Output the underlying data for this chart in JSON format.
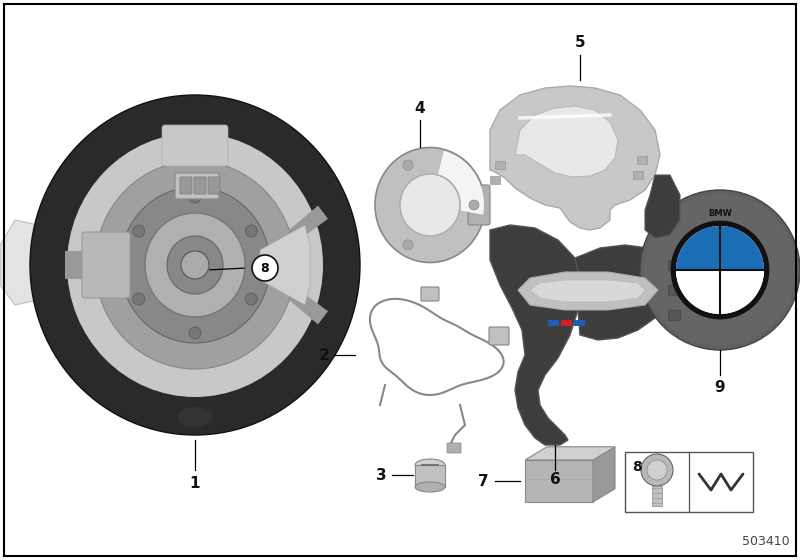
{
  "bg_color": "#ffffff",
  "border_color": "#000000",
  "part_number": "503410",
  "wheel_color": "#2a2a2a",
  "hub_color": "#909090",
  "silver": "#c0c0c0",
  "dark_part": "#3d3d3d",
  "light_gray": "#b8b8b8",
  "med_gray": "#888888",
  "bmw_blue": "#1b6eb5",
  "label_fs": 11,
  "small_fs": 9,
  "note_fs": 9
}
